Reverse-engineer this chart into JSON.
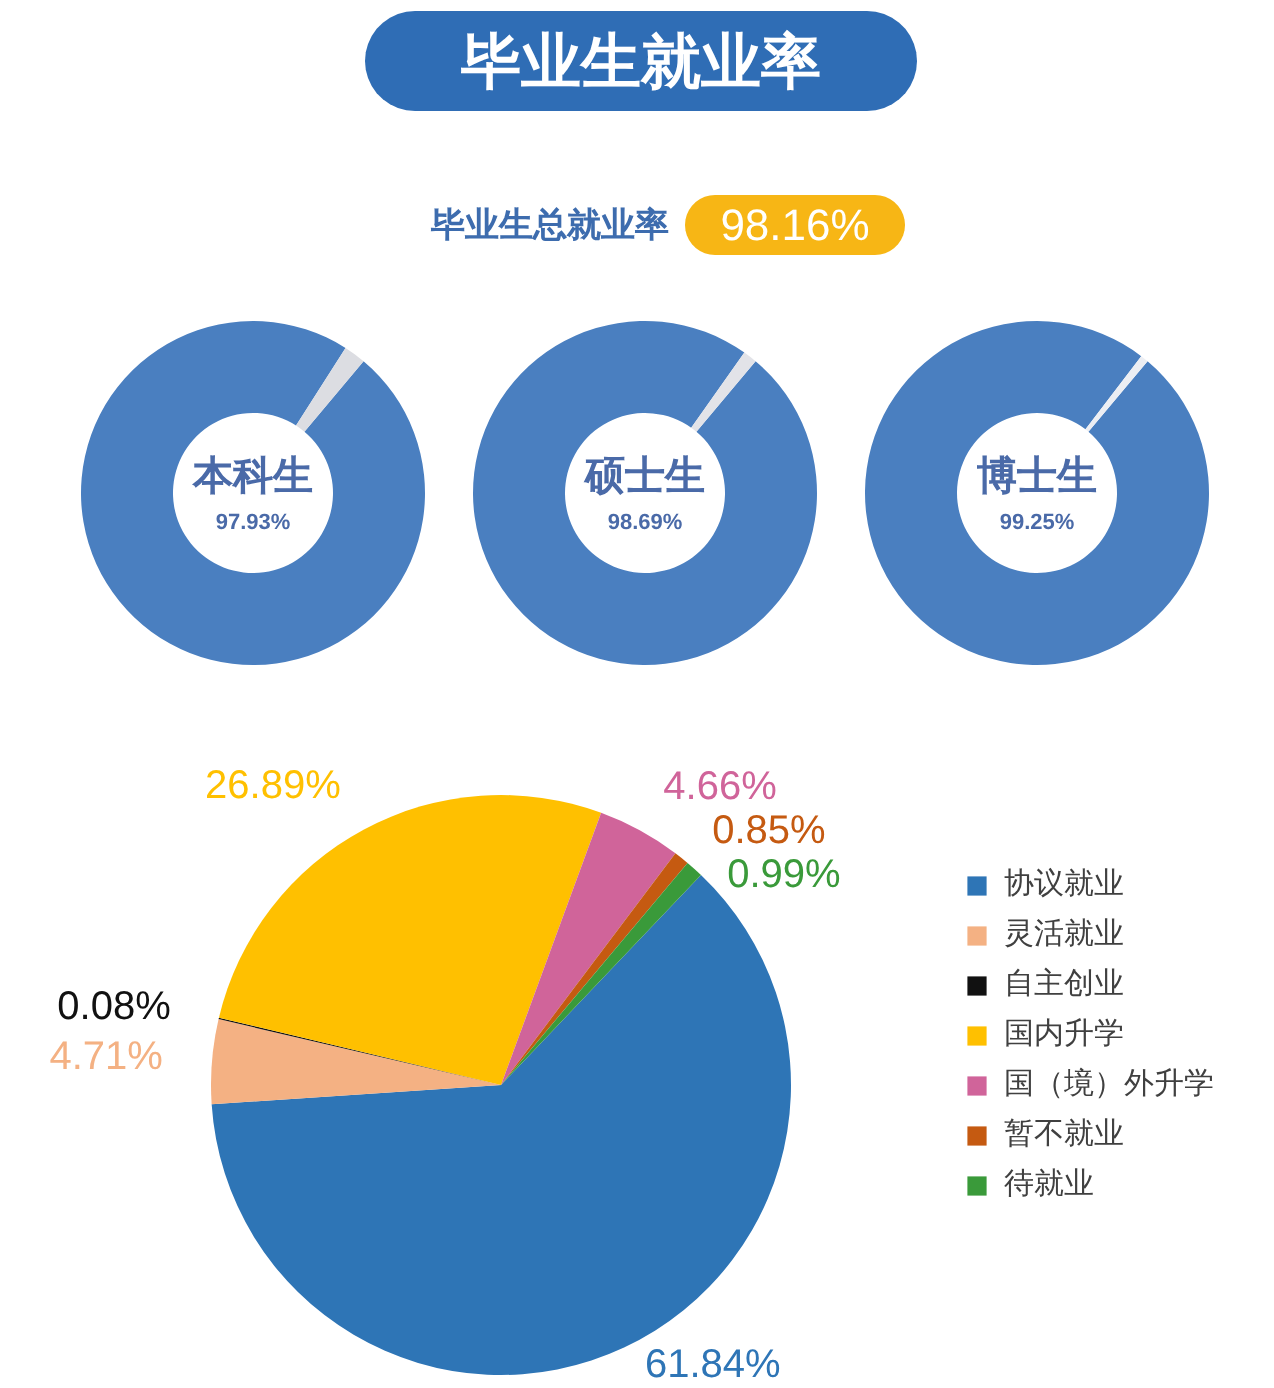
{
  "chart_data": [
    {
      "type": "other",
      "title": "毕业生就业率",
      "subtitle": "毕业生总就业率",
      "annotations": [
        "98.16%"
      ]
    },
    {
      "type": "donut",
      "title": "本科生",
      "categories": [
        null,
        null
      ],
      "values": [
        97.93,
        2.07
      ],
      "colors": [
        "#4a7fc0",
        "#dcdde2"
      ],
      "value_labels": [
        "97.93%",
        null
      ]
    },
    {
      "type": "donut",
      "title": "硕士生",
      "categories": [
        null,
        null
      ],
      "values": [
        98.69,
        1.31
      ],
      "colors": [
        "#4a7fc0",
        "#e2e3e8"
      ],
      "value_labels": [
        "98.69%",
        null
      ]
    },
    {
      "type": "donut",
      "title": "博士生",
      "categories": [
        null,
        null
      ],
      "values": [
        99.25,
        0.75
      ],
      "colors": [
        "#4a7fc0",
        "#eceef3"
      ],
      "value_labels": [
        "99.25%",
        null
      ]
    },
    {
      "type": "pie",
      "categories": [
        "协议就业",
        "灵活就业",
        "自主创业",
        "国内升学",
        "国（境）外升学",
        "暂不就业",
        "待就业"
      ],
      "values": [
        61.84,
        4.71,
        0.08,
        26.89,
        4.66,
        0.85,
        0.99
      ],
      "colors": [
        "#2e75b6",
        "#f4b183",
        "#111111",
        "#ffc000",
        "#d0649a",
        "#c55a11",
        "#3a9a3a"
      ],
      "value_labels": [
        "61.84%",
        "4.71%",
        "0.08%",
        "26.89%",
        "4.66%",
        "0.85%",
        "0.99%"
      ],
      "legend": "right"
    }
  ]
}
